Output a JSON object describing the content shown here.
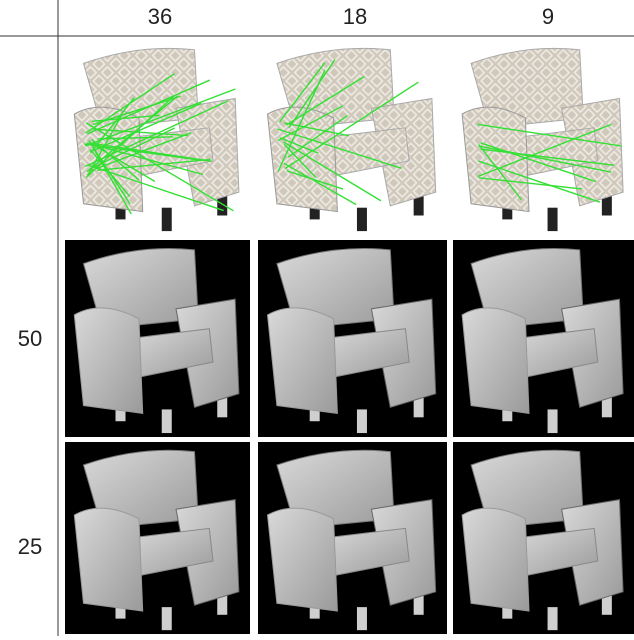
{
  "columns": [
    "36",
    "18",
    "9"
  ],
  "rows": [
    "50",
    "25"
  ]
}
